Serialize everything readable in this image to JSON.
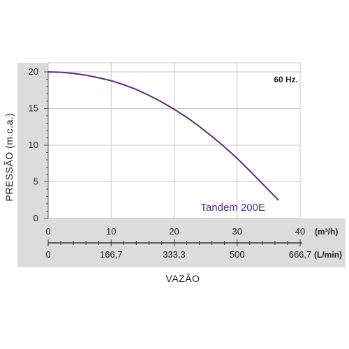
{
  "chart_data": {
    "type": "line",
    "annotation": "60 Hz.",
    "ylabel": "PRESSÃO (m.c.a.)",
    "xlabel": "VAZÃO",
    "ylim": [
      0,
      20
    ],
    "y_ticks": [
      "0",
      "5",
      "10",
      "15",
      "20"
    ],
    "x_axis_primary": {
      "unit": "(m³/h)",
      "lim": [
        0,
        40
      ],
      "ticks": [
        "0",
        "10",
        "20",
        "30",
        "40"
      ]
    },
    "x_axis_secondary": {
      "unit": "(L/min)",
      "ticks": [
        "0",
        "166,7",
        "333,3",
        "500",
        "666,7"
      ]
    },
    "grid": true,
    "series": [
      {
        "name": "Tandem 200E",
        "color": "#5b2c83",
        "x": [
          0,
          2,
          4,
          6,
          8,
          10,
          12,
          14,
          16,
          18,
          20,
          22,
          24,
          26,
          28,
          30,
          32,
          34,
          36.5
        ],
        "y": [
          20.0,
          19.95,
          19.8,
          19.55,
          19.2,
          18.8,
          18.25,
          17.6,
          16.8,
          15.9,
          14.9,
          13.8,
          12.55,
          11.2,
          9.75,
          8.2,
          6.5,
          4.75,
          2.55
        ]
      }
    ]
  },
  "colors": {
    "axis_band": "#dcdcdc",
    "grid": "#c8c8c8",
    "axis_line": "#333333"
  }
}
